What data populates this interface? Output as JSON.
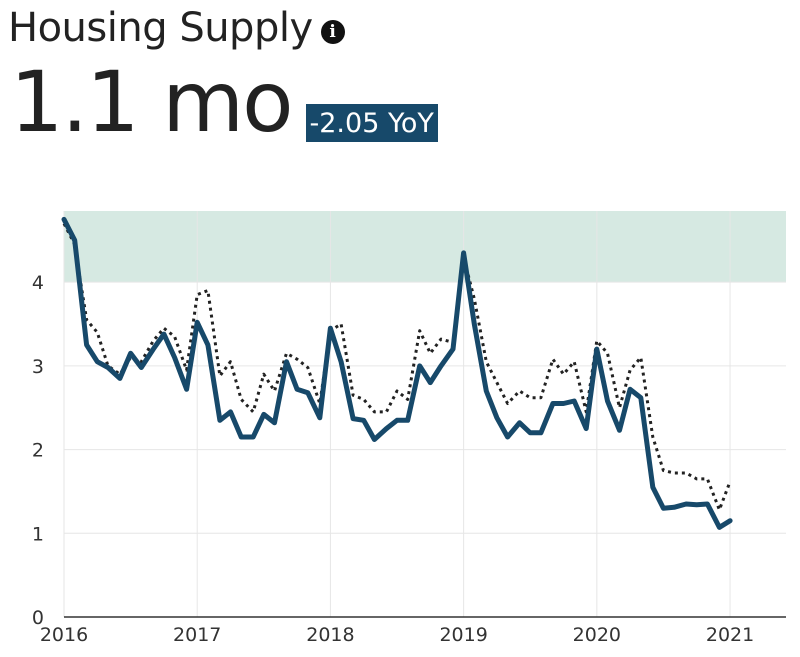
{
  "header": {
    "title": "Housing Supply",
    "info_icon": "info-icon",
    "value": "1.1 mo",
    "yoy_badge": "-2.05 YoY"
  },
  "colors": {
    "series_line": "#17496a",
    "comparison_line": "#222222",
    "band": "#d6e9e2",
    "badge": "#17496a",
    "grid": "#e6e6e6"
  },
  "chart_data": {
    "type": "line",
    "title": "",
    "xlabel": "",
    "ylabel": "",
    "ylim": [
      0,
      4.85
    ],
    "xlim": [
      2016,
      2021.42
    ],
    "x_ticks": [
      "2016",
      "2017",
      "2018",
      "2019",
      "2020",
      "2021"
    ],
    "y_ticks": [
      "0",
      "1",
      "2",
      "3",
      "4"
    ],
    "grid": true,
    "shaded_band": {
      "y_from": 4.0,
      "y_to": 4.85
    },
    "x": [
      2016.0,
      2016.08,
      2016.17,
      2016.25,
      2016.33,
      2016.42,
      2016.5,
      2016.58,
      2016.67,
      2016.75,
      2016.83,
      2016.92,
      2017.0,
      2017.08,
      2017.17,
      2017.25,
      2017.33,
      2017.42,
      2017.5,
      2017.58,
      2017.67,
      2017.75,
      2017.83,
      2017.92,
      2018.0,
      2018.08,
      2018.17,
      2018.25,
      2018.33,
      2018.42,
      2018.5,
      2018.58,
      2018.67,
      2018.75,
      2018.83,
      2018.92,
      2019.0,
      2019.08,
      2019.17,
      2019.25,
      2019.33,
      2019.42,
      2019.5,
      2019.58,
      2019.67,
      2019.75,
      2019.83,
      2019.92,
      2020.0,
      2020.08,
      2020.17,
      2020.25,
      2020.33,
      2020.42,
      2020.5,
      2020.58,
      2020.67,
      2020.75,
      2020.83,
      2020.92,
      2021.0
    ],
    "series": [
      {
        "style": "solid",
        "values": [
          4.75,
          4.5,
          3.25,
          3.05,
          2.98,
          2.85,
          3.15,
          2.98,
          3.2,
          3.38,
          3.1,
          2.72,
          3.52,
          3.25,
          2.35,
          2.45,
          2.15,
          2.15,
          2.42,
          2.32,
          3.05,
          2.72,
          2.68,
          2.38,
          3.45,
          3.05,
          2.37,
          2.35,
          2.12,
          2.25,
          2.35,
          2.35,
          3.0,
          2.8,
          3.0,
          3.2,
          4.35,
          3.5,
          2.7,
          2.38,
          2.15,
          2.32,
          2.2,
          2.2,
          2.55,
          2.55,
          2.58,
          2.25,
          3.2,
          2.58,
          2.23,
          2.72,
          2.62,
          1.55,
          1.3,
          1.31,
          1.35,
          1.34,
          1.35,
          1.07,
          1.15
        ]
      },
      {
        "style": "dotted",
        "values": [
          4.7,
          4.45,
          3.55,
          3.4,
          3.0,
          2.9,
          3.1,
          3.05,
          3.3,
          3.45,
          3.35,
          2.95,
          3.85,
          3.9,
          2.88,
          3.05,
          2.6,
          2.45,
          2.9,
          2.7,
          3.15,
          3.08,
          2.98,
          2.55,
          3.42,
          3.5,
          2.65,
          2.6,
          2.45,
          2.45,
          2.7,
          2.6,
          3.42,
          3.15,
          3.32,
          3.28,
          4.3,
          3.8,
          3.05,
          2.8,
          2.55,
          2.7,
          2.62,
          2.62,
          3.08,
          2.9,
          3.05,
          2.45,
          3.3,
          3.15,
          2.5,
          2.95,
          3.1,
          2.15,
          1.75,
          1.72,
          1.72,
          1.65,
          1.65,
          1.28,
          1.62
        ]
      }
    ]
  }
}
